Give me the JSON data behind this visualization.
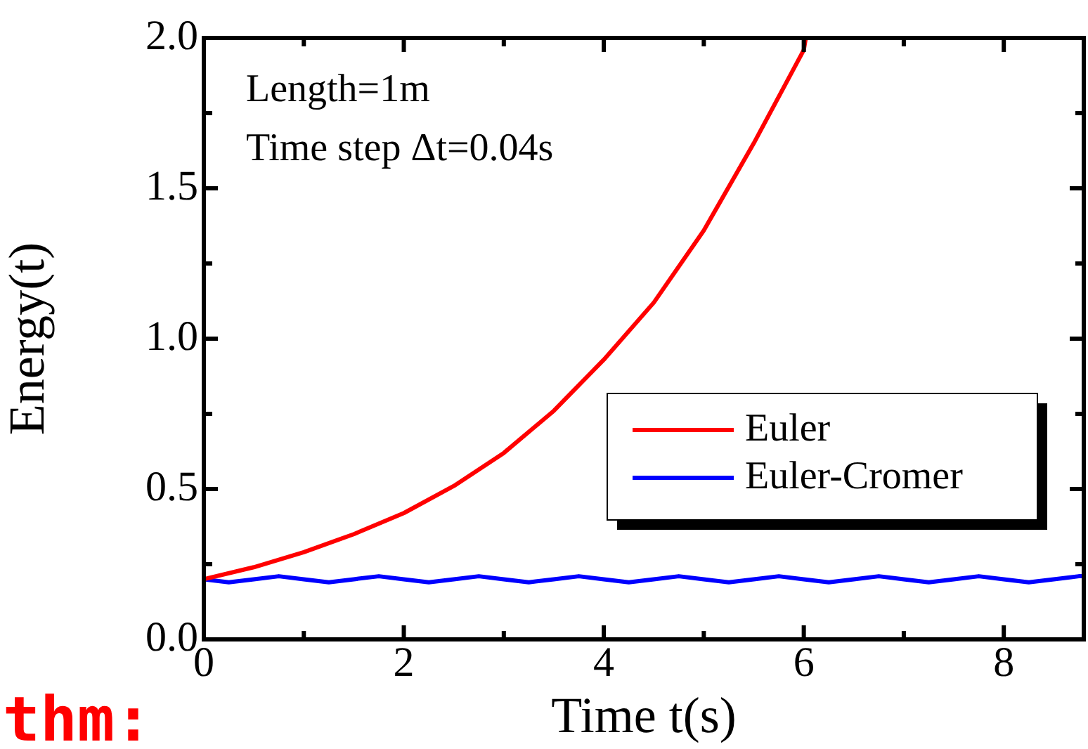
{
  "chart_data": {
    "type": "line",
    "xlabel": "Time t(s)",
    "ylabel": "Energy(t)",
    "annotations": [
      "Length=1m",
      "Time step Δt=0.04s",
      "thm:"
    ],
    "xlim": [
      0,
      8.8
    ],
    "xticks": [
      0,
      {
        "value": 1,
        "label": null
      },
      2,
      {
        "value": 3,
        "label": null
      },
      4,
      {
        "value": 5,
        "label": null
      },
      6,
      {
        "value": 7,
        "label": null
      },
      8
    ],
    "ylim": [
      0,
      2.0
    ],
    "yticks": [
      {
        "value": 0,
        "label": "0.0"
      },
      {
        "value": 0.25,
        "label": null
      },
      0.5,
      {
        "value": 0.75,
        "label": null
      },
      {
        "value": 1,
        "label": "1.0"
      },
      {
        "value": 1.25,
        "label": null
      },
      1.5,
      {
        "value": 1.75,
        "label": null
      },
      {
        "value": 2,
        "label": "2.0"
      }
    ],
    "grid": false,
    "legend": "right",
    "marker": "none",
    "line_style": "solid",
    "series": [
      {
        "name": "Euler",
        "color": "#ff0000",
        "x": [
          0,
          0.5,
          1,
          1.5,
          2,
          2.5,
          3,
          3.5,
          4,
          4.5,
          5,
          5.5,
          6,
          6.02
        ],
        "values": [
          0.2,
          0.24,
          0.29,
          0.35,
          0.42,
          0.51,
          0.62,
          0.76,
          0.93,
          1.12,
          1.36,
          1.65,
          1.96,
          2.0
        ]
      },
      {
        "name": "Euler-Cromer",
        "color": "#0000ff",
        "x": [
          0,
          0.25,
          0.5,
          0.75,
          1,
          1.25,
          1.5,
          1.75,
          2,
          2.25,
          2.5,
          2.75,
          3,
          3.25,
          3.5,
          3.75,
          4,
          4.25,
          4.5,
          4.75,
          5,
          5.25,
          5.5,
          5.75,
          6,
          6.25,
          6.5,
          6.75,
          7,
          7.25,
          7.5,
          7.75,
          8,
          8.25,
          8.5,
          8.75,
          8.8
        ],
        "values": [
          0.2,
          0.19,
          0.2,
          0.21,
          0.2,
          0.19,
          0.2,
          0.21,
          0.2,
          0.19,
          0.2,
          0.21,
          0.2,
          0.19,
          0.2,
          0.21,
          0.2,
          0.19,
          0.2,
          0.21,
          0.2,
          0.19,
          0.2,
          0.21,
          0.2,
          0.19,
          0.2,
          0.21,
          0.2,
          0.19,
          0.2,
          0.21,
          0.2,
          0.19,
          0.2,
          0.21,
          0.21
        ]
      }
    ]
  }
}
